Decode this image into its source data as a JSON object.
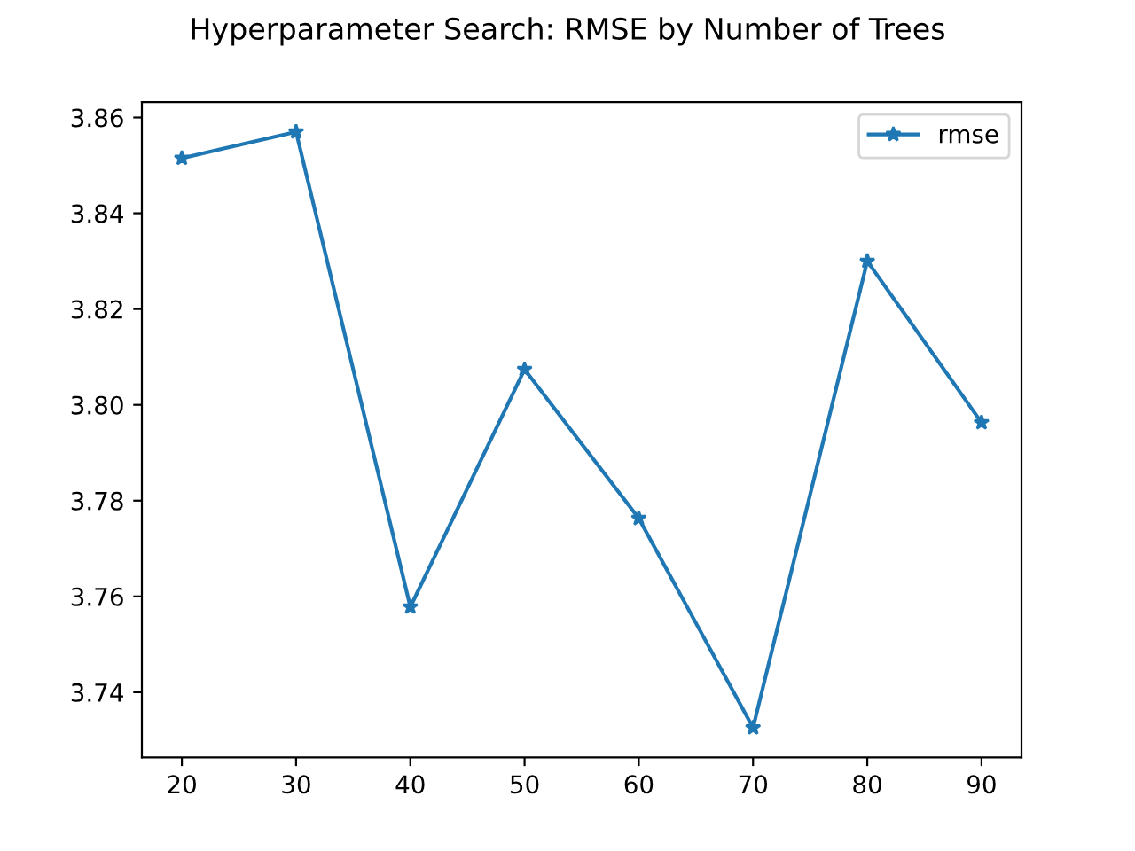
{
  "chart_data": {
    "type": "line",
    "title": "Hyperparameter Search: RMSE by Number of Trees",
    "x": [
      20,
      30,
      40,
      50,
      60,
      70,
      80,
      90
    ],
    "series": [
      {
        "name": "rmse",
        "color": "#1f77b4",
        "values": [
          3.8515,
          3.857,
          3.7578,
          3.8074,
          3.7763,
          3.7326,
          3.83,
          3.7963
        ]
      }
    ],
    "xlim": [
      16.5,
      93.5
    ],
    "xticks": [
      20,
      30,
      40,
      50,
      60,
      70,
      80,
      90
    ],
    "ylim": [
      3.7264,
      3.8632
    ],
    "yticks": [
      3.74,
      3.76,
      3.78,
      {
        "value": 3.8,
        "label": "3.80"
      },
      3.82,
      3.84,
      3.86
    ],
    "marker": "star",
    "line_style": "solid",
    "legend": "top right",
    "grid": false
  }
}
